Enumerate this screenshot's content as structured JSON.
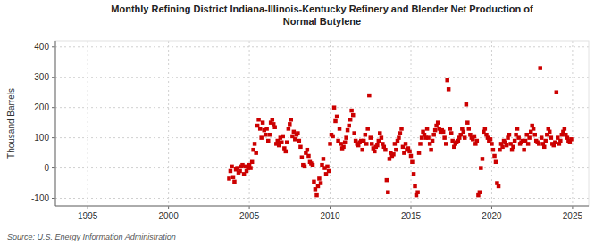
{
  "chart_data": {
    "type": "scatter",
    "title": "Monthly Refining District Indiana-Illinois-Kentucky Refinery and Blender Net Production of\nNormal Butylene",
    "ylabel": "Thousand Barrels",
    "annotations": [
      "Source: U.S. Energy Information Administration"
    ],
    "color": "#cc0000",
    "marker": "square",
    "grid": true,
    "xlim": [
      1993,
      2026
    ],
    "ylim": [
      -125,
      420
    ],
    "xticks": [
      1995,
      2000,
      2005,
      2010,
      2015,
      2020,
      2025
    ],
    "yticks": [
      -100,
      0,
      100,
      200,
      300,
      400
    ],
    "x": [
      2003.75,
      2003.83,
      2003.92,
      2004.0,
      2004.08,
      2004.17,
      2004.25,
      2004.33,
      2004.42,
      2004.5,
      2004.58,
      2004.67,
      2004.75,
      2004.83,
      2004.92,
      2005.0,
      2005.08,
      2005.17,
      2005.25,
      2005.33,
      2005.42,
      2005.5,
      2005.58,
      2005.67,
      2005.75,
      2005.83,
      2005.92,
      2006.0,
      2006.08,
      2006.17,
      2006.25,
      2006.33,
      2006.42,
      2006.5,
      2006.58,
      2006.67,
      2006.75,
      2006.83,
      2006.92,
      2007.0,
      2007.08,
      2007.17,
      2007.25,
      2007.33,
      2007.42,
      2007.5,
      2007.58,
      2007.67,
      2007.75,
      2007.83,
      2007.92,
      2008.0,
      2008.08,
      2008.17,
      2008.25,
      2008.33,
      2008.42,
      2008.5,
      2008.58,
      2008.67,
      2008.75,
      2008.83,
      2008.92,
      2009.0,
      2009.08,
      2009.17,
      2009.25,
      2009.33,
      2009.42,
      2009.5,
      2009.58,
      2009.67,
      2009.75,
      2009.83,
      2009.92,
      2010.0,
      2010.08,
      2010.17,
      2010.25,
      2010.33,
      2010.42,
      2010.5,
      2010.58,
      2010.67,
      2010.75,
      2010.83,
      2010.92,
      2011.0,
      2011.08,
      2011.17,
      2011.25,
      2011.33,
      2011.42,
      2011.5,
      2011.58,
      2011.67,
      2011.75,
      2011.83,
      2011.92,
      2012.0,
      2012.08,
      2012.17,
      2012.25,
      2012.33,
      2012.42,
      2012.5,
      2012.58,
      2012.67,
      2012.75,
      2012.83,
      2012.92,
      2013.0,
      2013.08,
      2013.17,
      2013.25,
      2013.33,
      2013.42,
      2013.5,
      2013.58,
      2013.67,
      2013.75,
      2013.83,
      2013.92,
      2014.0,
      2014.08,
      2014.17,
      2014.25,
      2014.33,
      2014.42,
      2014.5,
      2014.58,
      2014.67,
      2014.75,
      2014.83,
      2014.92,
      2015.0,
      2015.08,
      2015.17,
      2015.25,
      2015.33,
      2015.42,
      2015.5,
      2015.58,
      2015.67,
      2015.75,
      2015.83,
      2015.92,
      2016.0,
      2016.08,
      2016.17,
      2016.25,
      2016.33,
      2016.42,
      2016.5,
      2016.58,
      2016.67,
      2016.75,
      2016.83,
      2016.92,
      2017.0,
      2017.08,
      2017.17,
      2017.25,
      2017.33,
      2017.42,
      2017.5,
      2017.58,
      2017.67,
      2017.75,
      2017.83,
      2017.92,
      2018.0,
      2018.08,
      2018.17,
      2018.25,
      2018.33,
      2018.42,
      2018.5,
      2018.58,
      2018.67,
      2018.75,
      2018.83,
      2018.92,
      2019.0,
      2019.08,
      2019.17,
      2019.25,
      2019.33,
      2019.42,
      2019.5,
      2019.58,
      2019.67,
      2019.75,
      2019.83,
      2019.92,
      2020.0,
      2020.08,
      2020.17,
      2020.25,
      2020.33,
      2020.42,
      2020.5,
      2020.58,
      2020.67,
      2020.75,
      2020.83,
      2020.92,
      2021.0,
      2021.08,
      2021.17,
      2021.25,
      2021.33,
      2021.42,
      2021.5,
      2021.58,
      2021.67,
      2021.75,
      2021.83,
      2021.92,
      2022.0,
      2022.08,
      2022.17,
      2022.25,
      2022.33,
      2022.42,
      2022.5,
      2022.58,
      2022.67,
      2022.75,
      2022.83,
      2022.92,
      2023.0,
      2023.08,
      2023.17,
      2023.25,
      2023.33,
      2023.42,
      2023.5,
      2023.58,
      2023.67,
      2023.75,
      2023.83,
      2023.92,
      2024.0,
      2024.08,
      2024.17,
      2024.25,
      2024.33,
      2024.42,
      2024.5,
      2024.58,
      2024.67,
      2024.75,
      2024.83,
      2024.92
    ],
    "values": [
      -35,
      -10,
      5,
      -30,
      -45,
      -5,
      0,
      -15,
      -10,
      5,
      10,
      -20,
      5,
      -10,
      0,
      10,
      0,
      20,
      60,
      80,
      50,
      140,
      160,
      130,
      100,
      150,
      125,
      110,
      130,
      90,
      110,
      150,
      160,
      145,
      135,
      80,
      90,
      75,
      100,
      85,
      105,
      65,
      55,
      85,
      130,
      145,
      160,
      105,
      120,
      95,
      110,
      115,
      90,
      70,
      35,
      10,
      5,
      50,
      60,
      40,
      20,
      15,
      10,
      -45,
      -70,
      -90,
      -60,
      -35,
      -50,
      10,
      30,
      0,
      -20,
      5,
      -10,
      80,
      110,
      105,
      200,
      155,
      170,
      90,
      130,
      80,
      65,
      70,
      85,
      100,
      125,
      140,
      160,
      190,
      175,
      115,
      90,
      80,
      75,
      85,
      90,
      60,
      90,
      110,
      80,
      130,
      240,
      100,
      80,
      65,
      55,
      70,
      75,
      90,
      115,
      100,
      80,
      70,
      60,
      -40,
      -80,
      30,
      50,
      40,
      45,
      80,
      60,
      90,
      100,
      115,
      130,
      70,
      50,
      80,
      60,
      65,
      55,
      40,
      20,
      -20,
      -60,
      -90,
      -80,
      50,
      80,
      100,
      120,
      110,
      100,
      130,
      100,
      80,
      60,
      90,
      110,
      125,
      140,
      150,
      130,
      120,
      125,
      120,
      100,
      80,
      290,
      260,
      130,
      115,
      90,
      70,
      80,
      85,
      90,
      100,
      110,
      130,
      120,
      100,
      210,
      150,
      130,
      110,
      100,
      95,
      105,
      80,
      90,
      -90,
      -80,
      0,
      30,
      120,
      130,
      110,
      100,
      90,
      95,
      80,
      60,
      40,
      20,
      -50,
      -60,
      60,
      80,
      70,
      90,
      85,
      75,
      100,
      110,
      80,
      60,
      70,
      90,
      110,
      130,
      100,
      80,
      85,
      90,
      60,
      90,
      110,
      80,
      100,
      120,
      140,
      130,
      110,
      90,
      85,
      80,
      330,
      100,
      80,
      70,
      90,
      110,
      130,
      120,
      100,
      80,
      75,
      85,
      250,
      100,
      80,
      90,
      110,
      120,
      130,
      110,
      100,
      90,
      85,
      95
    ]
  }
}
